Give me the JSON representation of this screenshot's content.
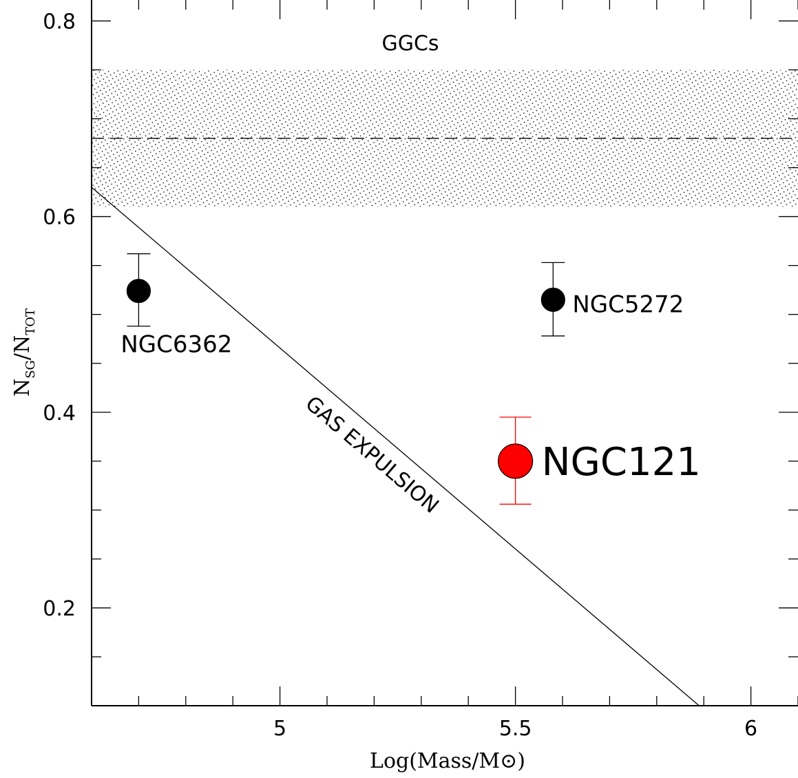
{
  "chart_data": {
    "type": "scatter",
    "xlabel": "Log(Mass/M⊙)",
    "ylabel": "N_SG/N_TOT",
    "xlim": [
      4.6,
      6.1
    ],
    "ylim": [
      0.1,
      0.82
    ],
    "x_ticks": [
      {
        "value": 5,
        "label": "5"
      },
      {
        "value": 5.5,
        "label": "5.5"
      },
      {
        "value": 6,
        "label": "6"
      }
    ],
    "y_ticks": [
      {
        "value": 0.2,
        "label": "0.2"
      },
      {
        "value": 0.4,
        "label": "0.4"
      },
      {
        "value": 0.6,
        "label": "0.6"
      },
      {
        "value": 0.8,
        "label": "0.8"
      }
    ],
    "grid": false,
    "points": [
      {
        "label": "NGC6362",
        "x": 4.7,
        "y": 0.524,
        "err_low": 0.488,
        "err_high": 0.562,
        "color": "#000000"
      },
      {
        "label": "NGC5272",
        "x": 5.58,
        "y": 0.515,
        "err_low": 0.478,
        "err_high": 0.553,
        "color": "#000000"
      },
      {
        "label": "NGC121",
        "x": 5.5,
        "y": 0.35,
        "err_low": 0.306,
        "err_high": 0.395,
        "color": "#ff0000"
      }
    ],
    "ggc_band": {
      "label": "GGCs",
      "y_low": 0.61,
      "y_high": 0.75,
      "mean": 0.68
    },
    "gas_expulsion_line": {
      "label": "GAS EXPULSION",
      "x1": 4.6,
      "y1": 0.63,
      "x2": 5.89,
      "y2": 0.1
    }
  }
}
